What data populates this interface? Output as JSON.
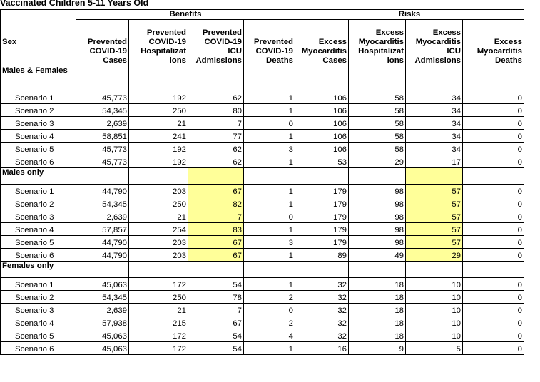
{
  "title": "Vaccinated Children 5-11 Years Old",
  "group_headers": {
    "benefits": "Benefits",
    "risks": "Risks"
  },
  "columns": [
    {
      "label": "Sex"
    },
    {
      "label": "Prevented COVID-19 Cases",
      "l1": "",
      "l2": "Prevented",
      "l3": "COVID-19",
      "l4": "Cases"
    },
    {
      "l1": "Prevented",
      "l2": "COVID-19",
      "l3": "Hospitalizat",
      "l4": "ions"
    },
    {
      "l1": "Prevented",
      "l2": "COVID-19",
      "l3": "ICU",
      "l4": "Admissions"
    },
    {
      "l1": "",
      "l2": "Prevented",
      "l3": "COVID-19",
      "l4": "Deaths"
    },
    {
      "l1": "",
      "l2": "Excess",
      "l3": "Myocarditis",
      "l4": "Cases"
    },
    {
      "l1": "Excess",
      "l2": "Myocarditis",
      "l3": "Hospitalizat",
      "l4": "ions"
    },
    {
      "l1": "Excess",
      "l2": "Myocarditis",
      "l3": "ICU",
      "l4": "Admissions"
    },
    {
      "l1": "",
      "l2": "Excess",
      "l3": "Myocarditis",
      "l4": "Deaths"
    }
  ],
  "groups": [
    {
      "label": "Males & Females",
      "rows": [
        {
          "scenario": "Scenario 1",
          "values": [
            "45,773",
            "192",
            "62",
            "1",
            "106",
            "58",
            "34",
            "0"
          ]
        },
        {
          "scenario": "Scenario 2",
          "values": [
            "54,345",
            "250",
            "80",
            "1",
            "106",
            "58",
            "34",
            "0"
          ]
        },
        {
          "scenario": "Scenario 3",
          "values": [
            "2,639",
            "21",
            "7",
            "0",
            "106",
            "58",
            "34",
            "0"
          ]
        },
        {
          "scenario": "Scenario 4",
          "values": [
            "58,851",
            "241",
            "77",
            "1",
            "106",
            "58",
            "34",
            "0"
          ]
        },
        {
          "scenario": "Scenario 5",
          "values": [
            "45,773",
            "192",
            "62",
            "3",
            "106",
            "58",
            "34",
            "0"
          ]
        },
        {
          "scenario": "Scenario 6",
          "values": [
            "45,773",
            "192",
            "62",
            "1",
            "53",
            "29",
            "17",
            "0"
          ]
        }
      ]
    },
    {
      "label": "Males only",
      "rows": [
        {
          "scenario": "Scenario 1",
          "values": [
            "44,790",
            "203",
            "67",
            "1",
            "179",
            "98",
            "57",
            "0"
          ]
        },
        {
          "scenario": "Scenario 2",
          "values": [
            "54,345",
            "250",
            "82",
            "1",
            "179",
            "98",
            "57",
            "0"
          ]
        },
        {
          "scenario": "Scenario 3",
          "values": [
            "2,639",
            "21",
            "7",
            "0",
            "179",
            "98",
            "57",
            "0"
          ]
        },
        {
          "scenario": "Scenario 4",
          "values": [
            "57,857",
            "254",
            "83",
            "1",
            "179",
            "98",
            "57",
            "0"
          ]
        },
        {
          "scenario": "Scenario 5",
          "values": [
            "44,790",
            "203",
            "67",
            "3",
            "179",
            "98",
            "57",
            "0"
          ]
        },
        {
          "scenario": "Scenario 6",
          "values": [
            "44,790",
            "203",
            "67",
            "1",
            "89",
            "49",
            "29",
            "0"
          ]
        }
      ]
    },
    {
      "label": "Females only",
      "rows": [
        {
          "scenario": "Scenario 1",
          "values": [
            "45,063",
            "172",
            "54",
            "1",
            "32",
            "18",
            "10",
            "0"
          ]
        },
        {
          "scenario": "Scenario 2",
          "values": [
            "54,345",
            "250",
            "78",
            "2",
            "32",
            "18",
            "10",
            "0"
          ]
        },
        {
          "scenario": "Scenario 3",
          "values": [
            "2,639",
            "21",
            "7",
            "0",
            "32",
            "18",
            "10",
            "0"
          ]
        },
        {
          "scenario": "Scenario 4",
          "values": [
            "57,938",
            "215",
            "67",
            "2",
            "32",
            "18",
            "10",
            "0"
          ]
        },
        {
          "scenario": "Scenario 5",
          "values": [
            "45,063",
            "172",
            "54",
            "4",
            "32",
            "18",
            "10",
            "0"
          ]
        },
        {
          "scenario": "Scenario 6",
          "values": [
            "45,063",
            "172",
            "54",
            "1",
            "16",
            "9",
            "5",
            "0"
          ]
        }
      ]
    }
  ],
  "highlight": {
    "color": "#ffff99",
    "group_index": 1,
    "value_columns": [
      2,
      6
    ]
  }
}
